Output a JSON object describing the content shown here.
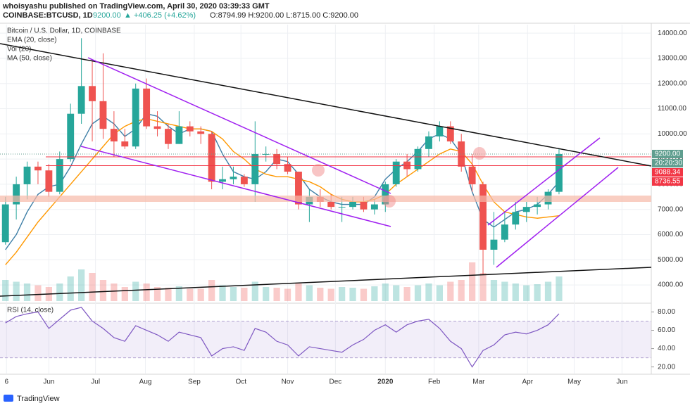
{
  "header": {
    "publisher": "whoisyashu published on TradingView.com, April 30, 2020 03:39:33 GMT",
    "symbol": "COINBASE:BTCUSD, 1D",
    "price": "9200.00",
    "change": "▲ +406.25 (+4.62%)",
    "ohlc": "O:8794.99 H:9200.00 L:8715.00 C:9200.00"
  },
  "footer": {
    "brand": "TradingView"
  },
  "chart_data": {
    "type": "candlestick",
    "title": "Bitcoin / U.S. Dollar, 1D, COINBASE",
    "indicator_labels": [
      "EMA (20, close)",
      "Vol (20)",
      "MA (50, close)"
    ],
    "up_color": "#26a69a",
    "down_color": "#ef5350",
    "xlim": [
      -0.5,
      59.5
    ],
    "xticks": [
      {
        "value": 0.1,
        "label": "6"
      },
      {
        "value": 4.0,
        "label": "Jun"
      },
      {
        "value": 8.3,
        "label": "Jul"
      },
      {
        "value": 12.9,
        "label": "Aug"
      },
      {
        "value": 17.4,
        "label": "Sep"
      },
      {
        "value": 21.7,
        "label": "Oct"
      },
      {
        "value": 26.0,
        "label": "Nov"
      },
      {
        "value": 30.4,
        "label": "Dec"
      },
      {
        "value": 35.0,
        "label": "2020"
      },
      {
        "value": 39.5,
        "label": "Feb"
      },
      {
        "value": 43.6,
        "label": "Mar"
      },
      {
        "value": 48.1,
        "label": "Apr"
      },
      {
        "value": 52.4,
        "label": "May"
      },
      {
        "value": 56.8,
        "label": "Jun"
      }
    ],
    "ylim": [
      3360,
      14340
    ],
    "yticks": [
      {
        "value": 4000,
        "label": "4000.00"
      },
      {
        "value": 5000,
        "label": "5000.00"
      },
      {
        "value": 6000,
        "label": "6000.00"
      },
      {
        "value": 7000,
        "label": "7000.00"
      },
      {
        "value": 8000,
        "label": "8000.00"
      },
      {
        "value": 9000,
        "label": "9000.00"
      },
      {
        "value": 10000,
        "label": "10000.00"
      },
      {
        "value": 11000,
        "label": "11000.00"
      },
      {
        "value": 12000,
        "label": "12000.00"
      },
      {
        "value": 13000,
        "label": "13000.00"
      },
      {
        "value": 14000,
        "label": "14000.00"
      }
    ],
    "ohlc": [
      [
        5700,
        7500,
        5600,
        7200
      ],
      [
        7200,
        8300,
        6600,
        8000
      ],
      [
        8000,
        8900,
        7400,
        8700
      ],
      [
        8700,
        8900,
        8000,
        8550
      ],
      [
        8550,
        8800,
        7500,
        7700
      ],
      [
        7700,
        9300,
        7600,
        9000
      ],
      [
        9000,
        11200,
        8900,
        10800
      ],
      [
        10800,
        13800,
        10400,
        11900
      ],
      [
        11900,
        12900,
        9700,
        11300
      ],
      [
        11300,
        13200,
        9800,
        10200
      ],
      [
        10200,
        10900,
        9100,
        9700
      ],
      [
        9700,
        10200,
        9400,
        9500
      ],
      [
        9500,
        12000,
        9400,
        11800
      ],
      [
        11800,
        12200,
        10200,
        10300
      ],
      [
        10300,
        10900,
        9900,
        10200
      ],
      [
        10200,
        10400,
        9400,
        9600
      ],
      [
        9600,
        10900,
        9600,
        10300
      ],
      [
        10300,
        10500,
        9900,
        10100
      ],
      [
        10100,
        10300,
        9600,
        10000
      ],
      [
        10000,
        10100,
        7800,
        8100
      ],
      [
        8100,
        8700,
        7800,
        8200
      ],
      [
        8200,
        8700,
        8000,
        8300
      ],
      [
        8300,
        8400,
        7900,
        8000
      ],
      [
        8000,
        10500,
        7300,
        9200
      ],
      [
        9200,
        9500,
        8900,
        9200
      ],
      [
        9200,
        9400,
        8600,
        8800
      ],
      [
        8800,
        9100,
        8400,
        8500
      ],
      [
        8500,
        8500,
        7000,
        7200
      ],
      [
        7200,
        7800,
        6500,
        7500
      ],
      [
        7500,
        7800,
        7100,
        7300
      ],
      [
        7300,
        7600,
        7000,
        7100
      ],
      [
        7100,
        7500,
        6500,
        7100
      ],
      [
        7100,
        7500,
        7000,
        7300
      ],
      [
        7300,
        7500,
        6900,
        7000
      ],
      [
        7000,
        7400,
        6800,
        7200
      ],
      [
        7200,
        8100,
        6900,
        8000
      ],
      [
        8000,
        9000,
        7900,
        8900
      ],
      [
        8900,
        9200,
        8300,
        8600
      ],
      [
        8600,
        9500,
        8500,
        9400
      ],
      [
        9400,
        10100,
        9100,
        9900
      ],
      [
        9900,
        10500,
        9700,
        10300
      ],
      [
        10300,
        10500,
        9600,
        9700
      ],
      [
        9700,
        10000,
        8500,
        8700
      ],
      [
        8700,
        9200,
        7700,
        8000
      ],
      [
        8000,
        8100,
        4400,
        5400
      ],
      [
        5400,
        6900,
        4800,
        5800
      ],
      [
        5800,
        6900,
        5700,
        6400
      ],
      [
        6400,
        7300,
        6200,
        6900
      ],
      [
        6900,
        7300,
        6500,
        7100
      ],
      [
        7100,
        7500,
        6800,
        7200
      ],
      [
        7200,
        7800,
        7000,
        7700
      ],
      [
        7700,
        9400,
        7600,
        9200
      ]
    ],
    "series": [
      {
        "name": "EMA (20, close)",
        "color": "#3d7ea6",
        "values": [
          5400,
          6000,
          6900,
          7600,
          7900,
          8000,
          8700,
          9600,
          10400,
          10700,
          10400,
          9900,
          10200,
          10800,
          10700,
          10300,
          10000,
          10200,
          10200,
          10100,
          9200,
          8500,
          8300,
          8200,
          8500,
          9000,
          8900,
          8400,
          7800,
          7500,
          7300,
          7200,
          7200,
          7200,
          7500,
          8200,
          8600,
          8900,
          9300,
          9800,
          10000,
          9800,
          9200,
          7700,
          6600,
          6300,
          6600,
          6900,
          7000,
          7200,
          7600,
          8100
        ]
      },
      {
        "name": "MA (50, close)",
        "color": "#ff9800",
        "values": [
          4800,
          5300,
          5900,
          6500,
          7000,
          7500,
          8000,
          8500,
          9000,
          9500,
          10000,
          10300,
          10500,
          10600,
          10500,
          10400,
          10300,
          10200,
          10200,
          10100,
          9800,
          9300,
          9000,
          8600,
          8400,
          8300,
          8300,
          8200,
          8100,
          7900,
          7600,
          7400,
          7300,
          7300,
          7400,
          7600,
          8000,
          8300,
          8600,
          8900,
          9200,
          9400,
          9300,
          8800,
          8000,
          7300,
          6900,
          6800,
          6700,
          6650,
          6700,
          6750
        ]
      }
    ],
    "volume": [
      60,
      55,
      50,
      45,
      40,
      50,
      70,
      90,
      80,
      60,
      50,
      40,
      55,
      50,
      40,
      38,
      42,
      35,
      35,
      60,
      45,
      40,
      38,
      55,
      40,
      38,
      35,
      50,
      45,
      38,
      35,
      40,
      38,
      35,
      42,
      50,
      45,
      40,
      45,
      50,
      45,
      55,
      60,
      110,
      80,
      60,
      55,
      50,
      45,
      48,
      55,
      70
    ],
    "price_labels": [
      {
        "value": 9200,
        "label": "9200.00",
        "color": "#5f9e8f"
      },
      {
        "value": 9088.34,
        "label": "9088.34",
        "color": "#f23645"
      },
      {
        "value": 8736.55,
        "label": "8736.55",
        "color": "#f23645"
      }
    ],
    "countdown": "20:20:30",
    "rsi": {
      "title": "RSI (14, close)",
      "color": "#7e57c2",
      "ylim": [
        12.8,
        88.8
      ],
      "band": [
        30,
        70
      ],
      "yticks": [
        {
          "value": 20,
          "label": "20.00"
        },
        {
          "value": 40,
          "label": "40.00"
        },
        {
          "value": 60,
          "label": "60.00"
        },
        {
          "value": 80,
          "label": "80.00"
        }
      ],
      "values": [
        68,
        75,
        78,
        80,
        62,
        72,
        82,
        85,
        70,
        62,
        52,
        48,
        65,
        60,
        55,
        48,
        58,
        55,
        52,
        32,
        40,
        42,
        38,
        62,
        58,
        48,
        44,
        32,
        42,
        40,
        38,
        36,
        44,
        50,
        60,
        66,
        58,
        66,
        70,
        72,
        62,
        48,
        40,
        20,
        38,
        44,
        55,
        58,
        56,
        60,
        66,
        78
      ]
    }
  }
}
